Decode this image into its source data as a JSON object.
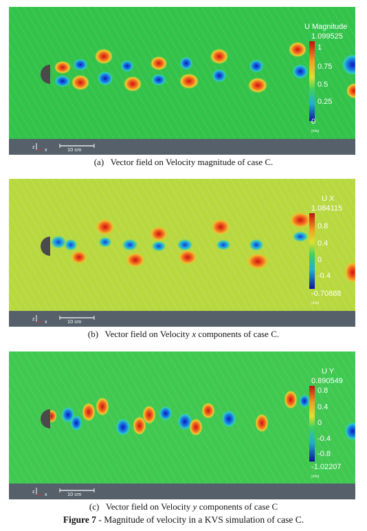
{
  "panels": [
    {
      "id": "a",
      "legend_title": "U Magnitude",
      "legend_max": "1.099525",
      "legend_ticks": [
        "1",
        "0.75",
        "0.5",
        "0.25",
        "0"
      ],
      "legend_unit": "(m/s)",
      "scale_label": "10 cm",
      "caption_prefix": "(a)",
      "caption": "Vector field on Velocity magnitude of case C.",
      "colors": {
        "background": "#33c24a",
        "strip": "#55606a"
      }
    },
    {
      "id": "b",
      "legend_title": "U X",
      "legend_max": "1.084115",
      "legend_ticks": [
        "0.8",
        "0.4",
        "0",
        "-0.4"
      ],
      "legend_min": "-0.70888",
      "legend_unit": "(m/s)",
      "scale_label": "10 cm",
      "caption_prefix": "(b)",
      "caption_pre": "Vector field on Velocity ",
      "caption_var": "x",
      "caption_post": " components of case C.",
      "colors": {
        "background": "#b8d840",
        "strip": "#55606a"
      }
    },
    {
      "id": "c",
      "legend_title": "U Y",
      "legend_max": "0.890549",
      "legend_ticks": [
        "0.8",
        "0.4",
        "0",
        "-0.4",
        "-0.8"
      ],
      "legend_min": "-1.02207",
      "legend_unit": "(m/s)",
      "scale_label": "10 cm",
      "caption_prefix": "(c)",
      "caption_pre": "Vector field on Velocity ",
      "caption_var": "y",
      "caption_post": " components of case C",
      "colors": {
        "background": "#40c850",
        "strip": "#55606a"
      }
    }
  ],
  "figure_caption": {
    "label": "Figure 7",
    "text": " - Magnitude of velocity in a KVS simulation of case C."
  },
  "axis_labels": {
    "z": "z",
    "x": "x"
  }
}
